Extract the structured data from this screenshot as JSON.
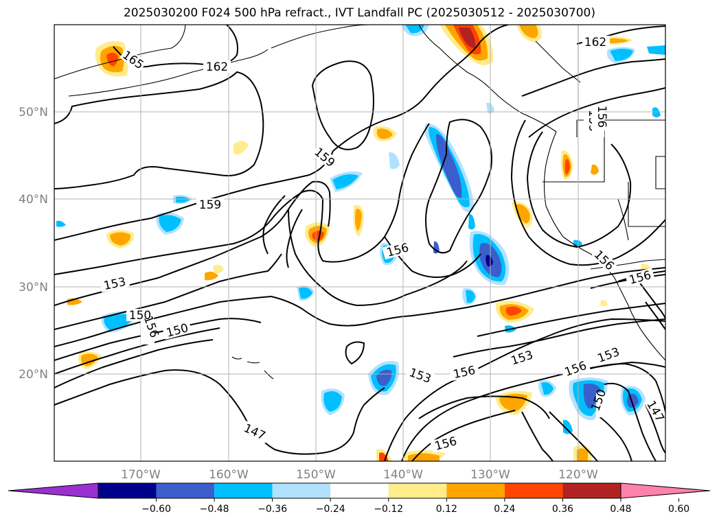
{
  "title": "2025030200 F024 500 hPa refract., IVT Landfall PC (2025030512 - 2025030700)",
  "map": {
    "lat_labels": [
      "50°N",
      "40°N",
      "30°N",
      "20°N"
    ],
    "lon_labels": [
      "170°W",
      "160°W",
      "150°W",
      "140°W",
      "130°W",
      "120°W"
    ],
    "contour_labels": [
      "165",
      "162",
      "162",
      "159",
      "159",
      "159",
      "156",
      "156",
      "156",
      "156",
      "156",
      "156",
      "153",
      "153",
      "153",
      "153",
      "150",
      "150",
      "150",
      "147",
      "147"
    ]
  },
  "colorbar": {
    "ticks": [
      "−0.60",
      "−0.48",
      "−0.36",
      "−0.24",
      "−0.12",
      "0.12",
      "0.24",
      "0.36",
      "0.48",
      "0.60"
    ],
    "colors": [
      "#9b30d0",
      "#00008b",
      "#3a5fcd",
      "#00bfff",
      "#b0e2ff",
      "#ffffff",
      "#ffec8b",
      "#ffa500",
      "#ff4500",
      "#b22222",
      "#ff82ab"
    ]
  }
}
